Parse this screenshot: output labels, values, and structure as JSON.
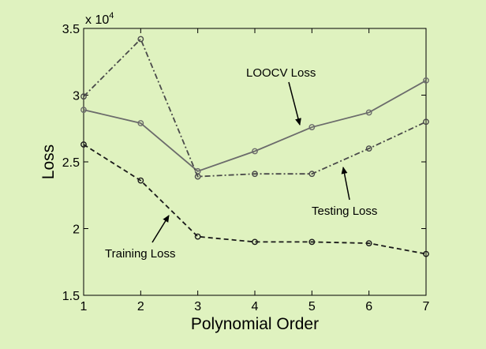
{
  "chart_data": {
    "type": "line",
    "title": "",
    "xlabel": "Polynomial Order",
    "ylabel": "Loss",
    "y_exponent_label": "x 10",
    "y_exponent_power": "4",
    "x": [
      1,
      2,
      3,
      4,
      5,
      6,
      7
    ],
    "xlim": [
      1,
      7
    ],
    "ylim": [
      1.5,
      3.5
    ],
    "y_scale_factor": 10000,
    "x_ticks": [
      "1",
      "2",
      "3",
      "4",
      "5",
      "6",
      "7"
    ],
    "y_ticks": [
      "1.5",
      "2",
      "2.5",
      "3",
      "3.5"
    ],
    "grid": false,
    "series": [
      {
        "name": "LOOCV Loss",
        "values": [
          2.89,
          2.79,
          2.43,
          2.58,
          2.76,
          2.87,
          3.11
        ],
        "line_style": "solid",
        "color": "#6b6b6b"
      },
      {
        "name": "Testing Loss",
        "values": [
          2.99,
          3.42,
          2.39,
          2.41,
          2.41,
          2.6,
          2.8
        ],
        "line_style": "dashdot",
        "color": "#4a4a4a"
      },
      {
        "name": "Training Loss",
        "values": [
          2.63,
          2.36,
          1.94,
          1.9,
          1.9,
          1.89,
          1.81
        ],
        "line_style": "dashed",
        "color": "#1a1a1a"
      }
    ],
    "annotations": [
      {
        "text": "LOOCV Loss",
        "series": "LOOCV Loss"
      },
      {
        "text": "Testing Loss",
        "series": "Testing Loss"
      },
      {
        "text": "Training Loss",
        "series": "Training Loss"
      }
    ]
  }
}
